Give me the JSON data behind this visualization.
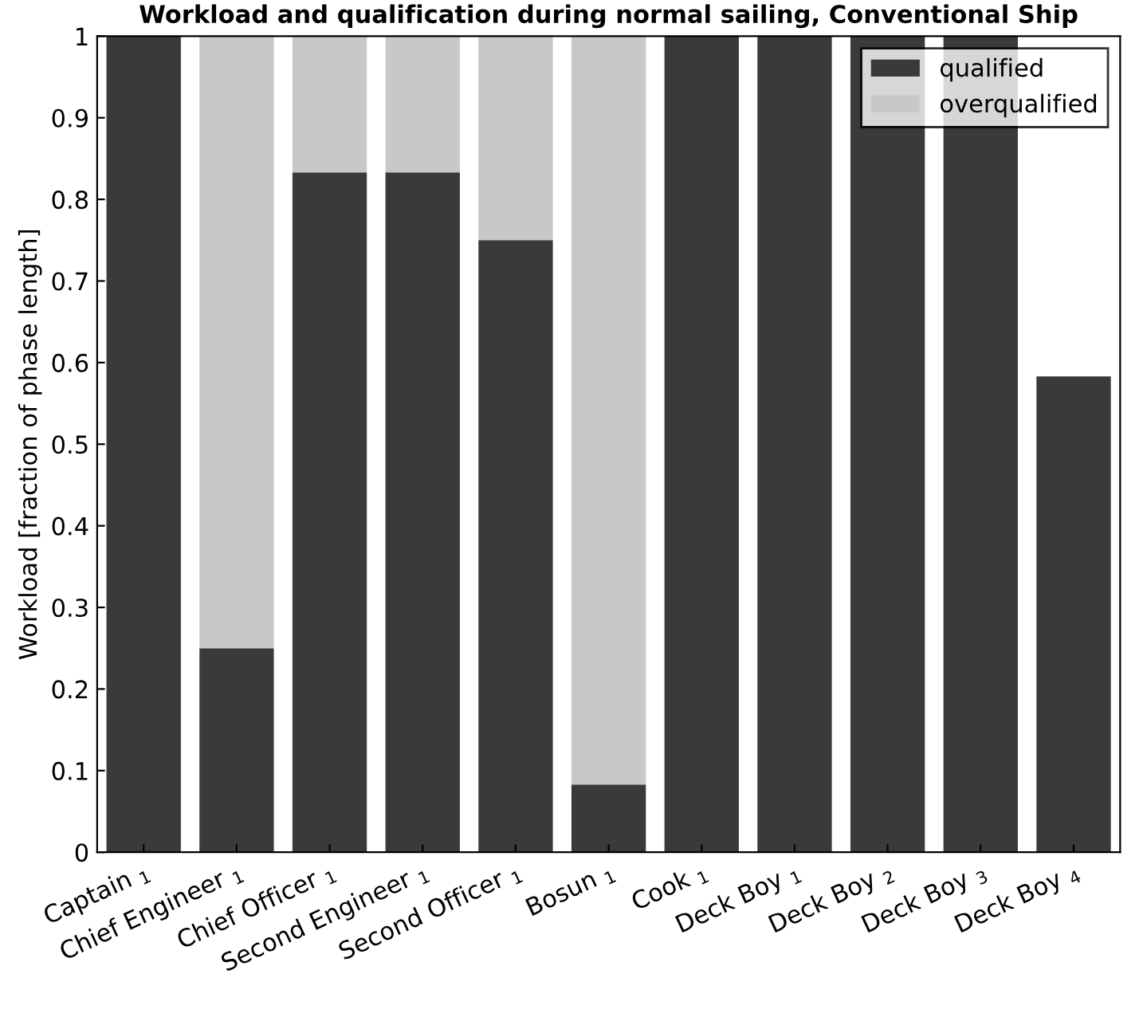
{
  "chart_data": {
    "type": "bar",
    "stacked": true,
    "title": "Workload and qualification during normal sailing, Conventional Ship",
    "ylabel": "Workload [fraction of phase length]",
    "categories": [
      "Captain $_{1}$",
      "Chief Engineer $_{1}$",
      "Chief Officer $_{1}$",
      "Second Engineer $_{1}$",
      "Second Officer $_{1}$",
      "Bosun $_{1}$",
      "Cook $_{1}$",
      "Deck Boy $_{1}$",
      "Deck Boy $_{2}$",
      "Deck Boy $_{3}$",
      "Deck Boy $_{4}$"
    ],
    "series": [
      {
        "name": "qualified",
        "color": "#3a3a3a",
        "values": [
          1,
          0.25,
          0.833,
          0.833,
          0.75,
          0.083,
          1,
          1,
          1,
          1,
          0.583
        ]
      },
      {
        "name": "overqualified",
        "color": "#c8c8c8",
        "values": [
          0,
          0.75,
          0.167,
          0.167,
          0.25,
          0.917,
          0,
          0,
          0,
          0,
          0
        ]
      }
    ],
    "ylim": [
      0,
      1
    ],
    "yticks": [
      0,
      0.1,
      0.2,
      0.3,
      0.4,
      0.5,
      0.6,
      0.7,
      0.8,
      0.9,
      1
    ],
    "legend": "top right",
    "grid": false
  }
}
